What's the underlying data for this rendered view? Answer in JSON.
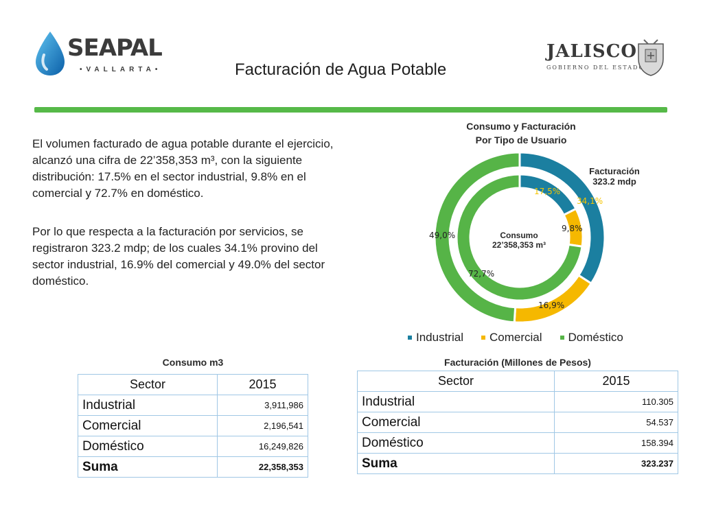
{
  "header": {
    "logo_left": {
      "name": "SEAPAL",
      "sub": "•VALLARTA•"
    },
    "title": "Facturación de Agua Potable",
    "logo_right": {
      "name": "JALISCO",
      "sub": "GOBIERNO DEL ESTADO"
    }
  },
  "body": {
    "paragraph1": "El volumen facturado de agua potable durante el ejercicio, alcanzó una cifra de 22’358,353 m³, con la siguiente distribución:  17.5% en el  sector industrial, 9.8% en el comercial y 72.7% en doméstico.",
    "paragraph2": "Por lo que respecta a la facturación por servicios,  se registraron  323.2 mdp;  de los cuales 34.1% provino del sector industrial, 16.9% del comercial y 49.0% del sector doméstico."
  },
  "chart": {
    "title_line1": "Consumo y Facturación",
    "title_line2": "Por Tipo de Usuario",
    "outer_label_line1": "Facturación",
    "outer_label_line2": "323.2 mdp",
    "inner_label_line1": "Consumo",
    "inner_label_line2": "22’358,353 m³",
    "colors": {
      "industrial": "#1b7fa0",
      "comercial": "#f5b800",
      "domestico": "#56b447"
    },
    "outer_pct_labels": [
      "34,1%",
      "16,9%",
      "49,0%"
    ],
    "inner_pct_labels": [
      "17,5%",
      "9,8%",
      "72,7%"
    ],
    "legend": [
      "Industrial",
      "Comercial",
      "Doméstico"
    ]
  },
  "chart_data": {
    "type": "pie",
    "title": "Consumo y Facturación Por Tipo de Usuario",
    "categories": [
      "Industrial",
      "Comercial",
      "Doméstico"
    ],
    "series": [
      {
        "name": "Facturación 323.2 mdp",
        "values": [
          34.1,
          16.9,
          49.0
        ]
      },
      {
        "name": "Consumo 22’358,353 m³",
        "values": [
          17.5,
          9.8,
          72.7
        ]
      }
    ],
    "legend_position": "bottom"
  },
  "table_consumo": {
    "title": "Consumo m3",
    "headers": [
      "Sector",
      "2015"
    ],
    "rows": [
      {
        "name": "Industrial",
        "value": "3,911,986"
      },
      {
        "name": "Comercial",
        "value": "2,196,541"
      },
      {
        "name": "Doméstico",
        "value": "16,249,826"
      }
    ],
    "sum": {
      "name": "Suma",
      "value": "22,358,353"
    }
  },
  "table_facturacion": {
    "title": "Facturación (Millones de Pesos)",
    "headers": [
      "Sector",
      "2015"
    ],
    "rows": [
      {
        "name": "Industrial",
        "value": "110.305"
      },
      {
        "name": "Comercial",
        "value": "54.537"
      },
      {
        "name": "Doméstico",
        "value": "158.394"
      }
    ],
    "sum": {
      "name": "Suma",
      "value": "323.237"
    }
  }
}
